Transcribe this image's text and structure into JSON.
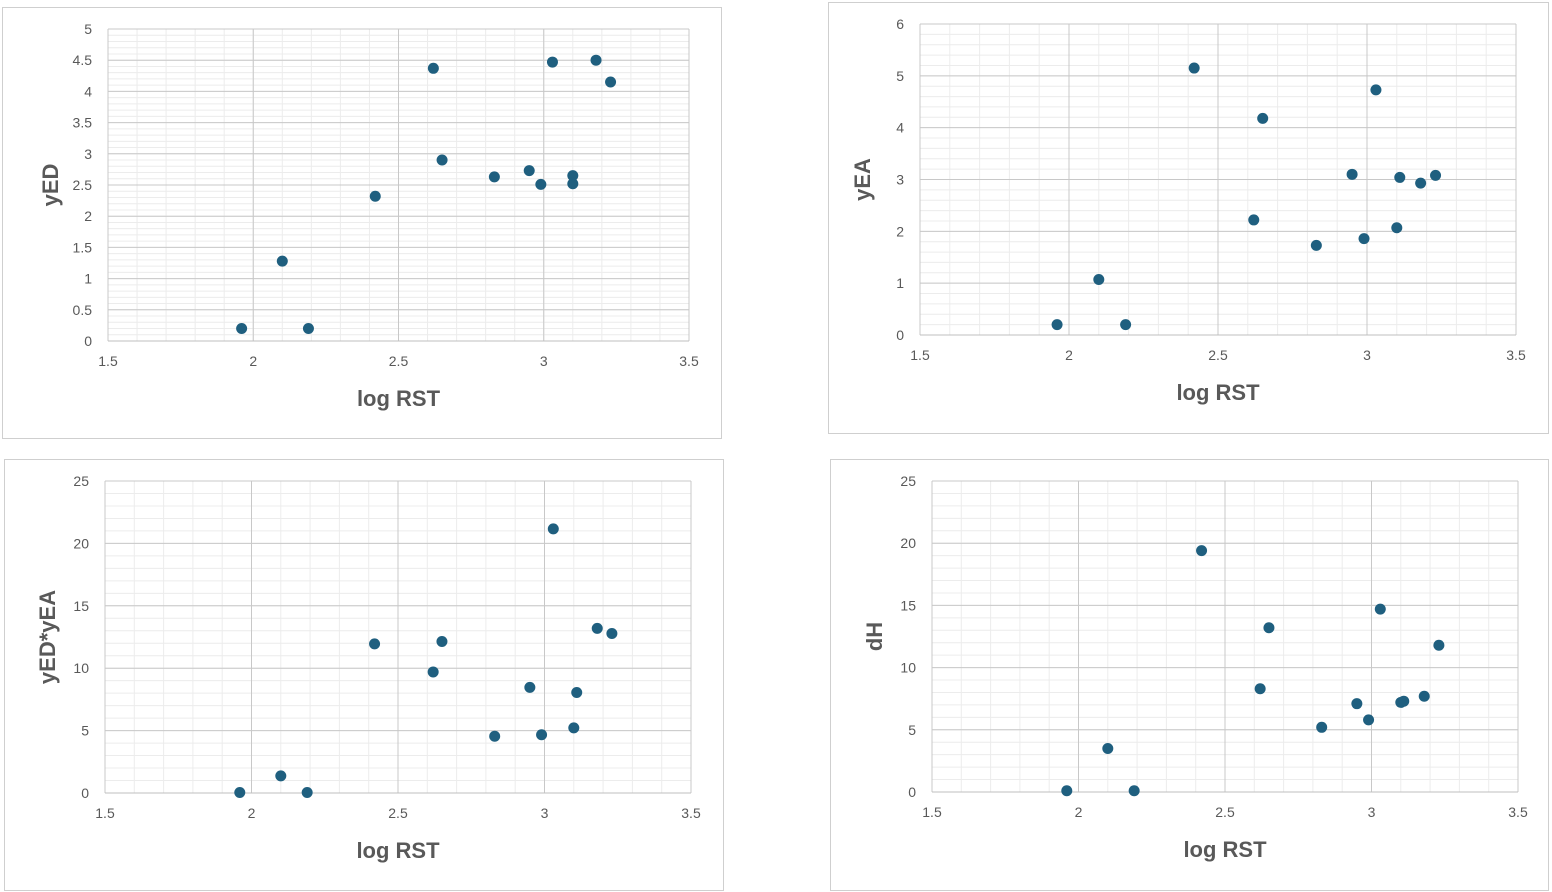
{
  "chart_data": [
    {
      "type": "scatter",
      "xlabel": "log RST",
      "ylabel": "yED",
      "xlim": [
        1.5,
        3.5
      ],
      "ylim": [
        0,
        5
      ],
      "xticks": [
        1.5,
        2,
        2.5,
        3,
        3.5
      ],
      "yticks": [
        0,
        0.5,
        1,
        1.5,
        2,
        2.5,
        3,
        3.5,
        4,
        4.5,
        5
      ],
      "grid": true,
      "marker_color": "#1f5f7f",
      "points": [
        {
          "x": 1.96,
          "y": 0.2
        },
        {
          "x": 2.1,
          "y": 1.28
        },
        {
          "x": 2.19,
          "y": 0.2
        },
        {
          "x": 2.42,
          "y": 2.32
        },
        {
          "x": 2.62,
          "y": 4.37
        },
        {
          "x": 2.65,
          "y": 2.9
        },
        {
          "x": 2.83,
          "y": 2.63
        },
        {
          "x": 2.95,
          "y": 2.73
        },
        {
          "x": 2.99,
          "y": 2.51
        },
        {
          "x": 3.03,
          "y": 4.47
        },
        {
          "x": 3.1,
          "y": 2.52
        },
        {
          "x": 3.1,
          "y": 2.65
        },
        {
          "x": 3.18,
          "y": 4.5
        },
        {
          "x": 3.23,
          "y": 4.15
        }
      ]
    },
    {
      "type": "scatter",
      "xlabel": "log RST",
      "ylabel": "yEA",
      "xlim": [
        1.5,
        3.5
      ],
      "ylim": [
        0,
        6
      ],
      "xticks": [
        1.5,
        2,
        2.5,
        3,
        3.5
      ],
      "yticks": [
        0,
        1,
        2,
        3,
        4,
        5,
        6
      ],
      "grid": true,
      "marker_color": "#1f5f7f",
      "points": [
        {
          "x": 1.96,
          "y": 0.2
        },
        {
          "x": 2.1,
          "y": 1.07
        },
        {
          "x": 2.19,
          "y": 0.2
        },
        {
          "x": 2.42,
          "y": 5.15
        },
        {
          "x": 2.62,
          "y": 2.22
        },
        {
          "x": 2.65,
          "y": 4.18
        },
        {
          "x": 2.83,
          "y": 1.73
        },
        {
          "x": 2.95,
          "y": 3.1
        },
        {
          "x": 2.99,
          "y": 1.86
        },
        {
          "x": 3.03,
          "y": 4.73
        },
        {
          "x": 3.1,
          "y": 2.07
        },
        {
          "x": 3.11,
          "y": 3.04
        },
        {
          "x": 3.18,
          "y": 2.93
        },
        {
          "x": 3.23,
          "y": 3.08
        }
      ]
    },
    {
      "type": "scatter",
      "xlabel": "log RST",
      "ylabel": "yED*yEA",
      "xlim": [
        1.5,
        3.5
      ],
      "ylim": [
        0,
        25
      ],
      "xticks": [
        1.5,
        2,
        2.5,
        3,
        3.5
      ],
      "yticks": [
        0,
        5,
        10,
        15,
        20,
        25
      ],
      "grid": true,
      "marker_color": "#1f5f7f",
      "points": [
        {
          "x": 1.96,
          "y": 0.04
        },
        {
          "x": 2.1,
          "y": 1.37
        },
        {
          "x": 2.19,
          "y": 0.04
        },
        {
          "x": 2.42,
          "y": 11.95
        },
        {
          "x": 2.62,
          "y": 9.7
        },
        {
          "x": 2.65,
          "y": 12.14
        },
        {
          "x": 2.83,
          "y": 4.55
        },
        {
          "x": 2.95,
          "y": 8.46
        },
        {
          "x": 2.99,
          "y": 4.67
        },
        {
          "x": 3.03,
          "y": 21.16
        },
        {
          "x": 3.1,
          "y": 5.22
        },
        {
          "x": 3.11,
          "y": 8.05
        },
        {
          "x": 3.18,
          "y": 13.19
        },
        {
          "x": 3.23,
          "y": 12.78
        }
      ]
    },
    {
      "type": "scatter",
      "xlabel": "log RST",
      "ylabel": "dH",
      "xlim": [
        1.5,
        3.5
      ],
      "ylim": [
        0,
        25
      ],
      "xticks": [
        1.5,
        2,
        2.5,
        3,
        3.5
      ],
      "yticks": [
        0,
        5,
        10,
        15,
        20,
        25
      ],
      "grid": true,
      "marker_color": "#1f5f7f",
      "points": [
        {
          "x": 1.96,
          "y": 0.1
        },
        {
          "x": 2.1,
          "y": 3.5
        },
        {
          "x": 2.19,
          "y": 0.1
        },
        {
          "x": 2.42,
          "y": 19.4
        },
        {
          "x": 2.62,
          "y": 8.3
        },
        {
          "x": 2.65,
          "y": 13.2
        },
        {
          "x": 2.83,
          "y": 5.2
        },
        {
          "x": 2.95,
          "y": 7.1
        },
        {
          "x": 2.99,
          "y": 5.8
        },
        {
          "x": 3.03,
          "y": 14.7
        },
        {
          "x": 3.1,
          "y": 7.2
        },
        {
          "x": 3.11,
          "y": 7.3
        },
        {
          "x": 3.18,
          "y": 7.7
        },
        {
          "x": 3.23,
          "y": 11.8
        }
      ]
    }
  ]
}
